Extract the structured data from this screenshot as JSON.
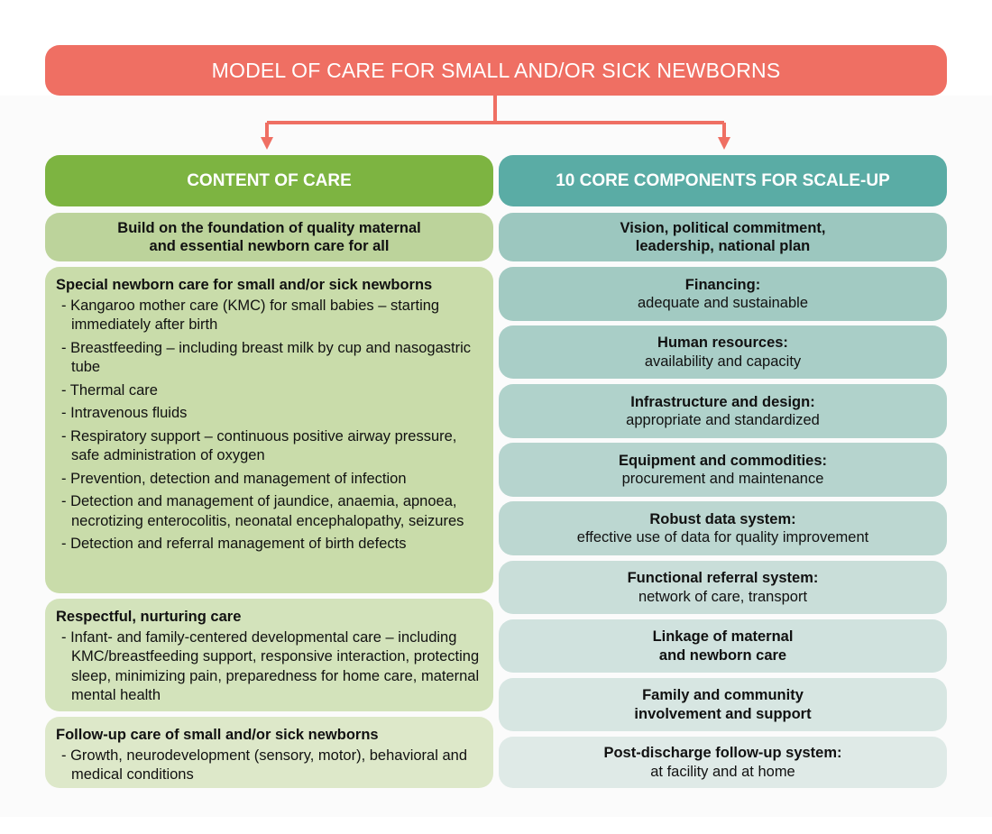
{
  "title": "MODEL OF CARE FOR SMALL AND/OR SICK NEWBORNS",
  "colors": {
    "title": "#ef6f63",
    "content": "#7db441",
    "core": "#5aaca5"
  },
  "left": {
    "header": "CONTENT OF CARE",
    "foundation": {
      "line1": "Build on the foundation of quality maternal",
      "line2": "and essential newborn care for all"
    },
    "sections": [
      {
        "heading": "Special newborn care for small and/or sick newborns",
        "items": [
          "Kangaroo mother care (KMC) for small babies – starting immediately after birth",
          "Breastfeeding – including breast milk by cup and nasogastric tube",
          "Thermal care",
          "Intravenous fluids",
          "Respiratory support – continuous positive airway pressure, safe administration of oxygen",
          "Prevention, detection and management of infection",
          "Detection and management of jaundice, anaemia, apnoea, necrotizing enterocolitis, neonatal encephalopathy, seizures",
          "Detection and referral management of birth defects"
        ]
      },
      {
        "heading": "Respectful, nurturing care",
        "items": [
          "Infant- and family-centered developmental care – including KMC/breastfeeding support, responsive interaction, protecting sleep, minimizing pain, preparedness for home care, maternal mental health"
        ]
      },
      {
        "heading": "Follow-up care of small and/or sick newborns",
        "items": [
          "Growth, neurodevelopment (sensory, motor), behavioral and medical conditions"
        ]
      }
    ]
  },
  "right": {
    "header": "10 CORE COMPONENTS FOR SCALE-UP",
    "components": [
      {
        "bold": "Vision, political commitment,",
        "bold2": "leadership, national plan"
      },
      {
        "bold": "Financing:",
        "sub": "adequate and sustainable"
      },
      {
        "bold": "Human resources:",
        "sub": "availability and capacity"
      },
      {
        "bold": "Infrastructure and design:",
        "sub": "appropriate and standardized"
      },
      {
        "bold": "Equipment and commodities:",
        "sub": "procurement and maintenance"
      },
      {
        "bold": "Robust data system:",
        "sub": "effective use of data for quality improvement"
      },
      {
        "bold": "Functional referral system:",
        "sub": "network of care, transport"
      },
      {
        "bold": "Linkage of maternal",
        "bold2": "and newborn care"
      },
      {
        "bold": "Family and community",
        "bold2": "involvement and support"
      },
      {
        "bold": "Post-discharge follow-up system:",
        "sub": "at facility and at home"
      }
    ]
  }
}
